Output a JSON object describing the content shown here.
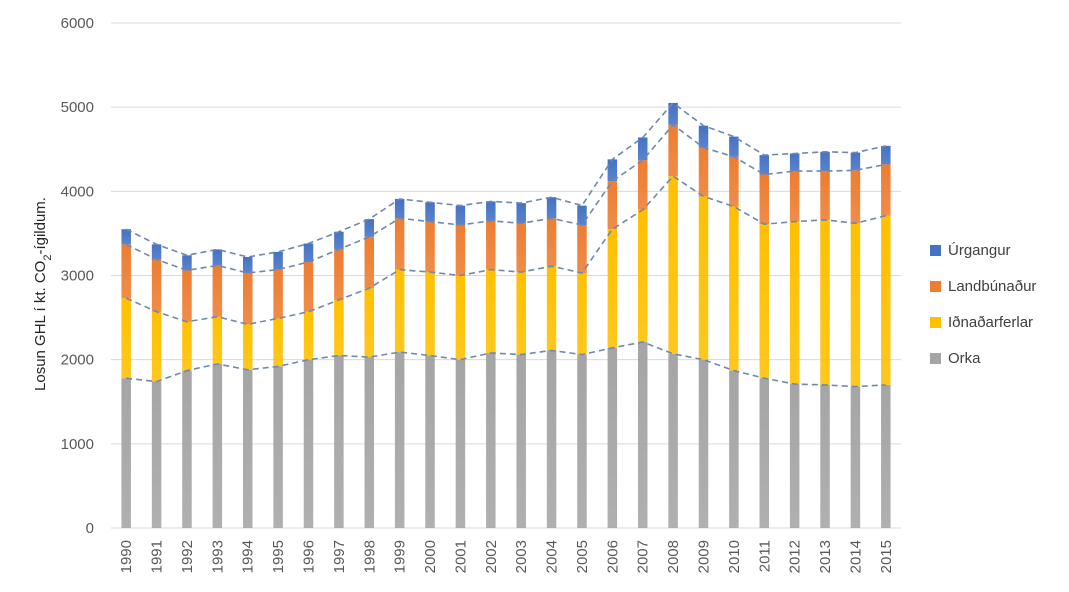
{
  "chart_data": {
    "type": "bar",
    "stacked": true,
    "ylabel_main": "Losun GHL í kt. CO",
    "ylabel_sub": "2",
    "ylabel_tail": "-ígildum.",
    "ylim": [
      0,
      6000
    ],
    "yticks": [
      "0",
      "1000",
      "2000",
      "3000",
      "4000",
      "5000",
      "6000"
    ],
    "grid": true,
    "legend_position": "right",
    "categories": [
      "1990",
      "1991",
      "1992",
      "1993",
      "1994",
      "1995",
      "1996",
      "1997",
      "1998",
      "1999",
      "2000",
      "2001",
      "2002",
      "2003",
      "2004",
      "2005",
      "2006",
      "2007",
      "2008",
      "2009",
      "2010",
      "2011",
      "2012",
      "2013",
      "2014",
      "2015"
    ],
    "series": [
      {
        "name": "Orka",
        "color": "#a5a5a5",
        "values": [
          1780,
          1740,
          1870,
          1950,
          1880,
          1920,
          2000,
          2050,
          2030,
          2090,
          2050,
          2000,
          2080,
          2060,
          2110,
          2060,
          2140,
          2210,
          2070,
          2000,
          1870,
          1780,
          1710,
          1700,
          1680,
          1700
        ]
      },
      {
        "name": "Iðnaðarferlar",
        "color": "#ffc000",
        "values": [
          950,
          830,
          580,
          560,
          540,
          570,
          570,
          660,
          820,
          980,
          990,
          1000,
          990,
          980,
          1000,
          970,
          1410,
          1570,
          2110,
          1940,
          1950,
          1830,
          1930,
          1960,
          1940,
          2010
        ]
      },
      {
        "name": "Landbúnaður",
        "color": "#ed7d31",
        "values": [
          640,
          620,
          610,
          610,
          610,
          580,
          590,
          600,
          610,
          610,
          600,
          600,
          580,
          580,
          570,
          570,
          570,
          590,
          610,
          580,
          590,
          590,
          600,
          580,
          630,
          610
        ]
      },
      {
        "name": "Úrgangur",
        "color": "#4472c4",
        "values": [
          180,
          180,
          180,
          190,
          190,
          210,
          220,
          210,
          210,
          230,
          230,
          230,
          230,
          240,
          250,
          230,
          260,
          270,
          260,
          260,
          240,
          230,
          210,
          230,
          210,
          220
        ]
      }
    ],
    "trend_line_color": "#6f88b0"
  }
}
